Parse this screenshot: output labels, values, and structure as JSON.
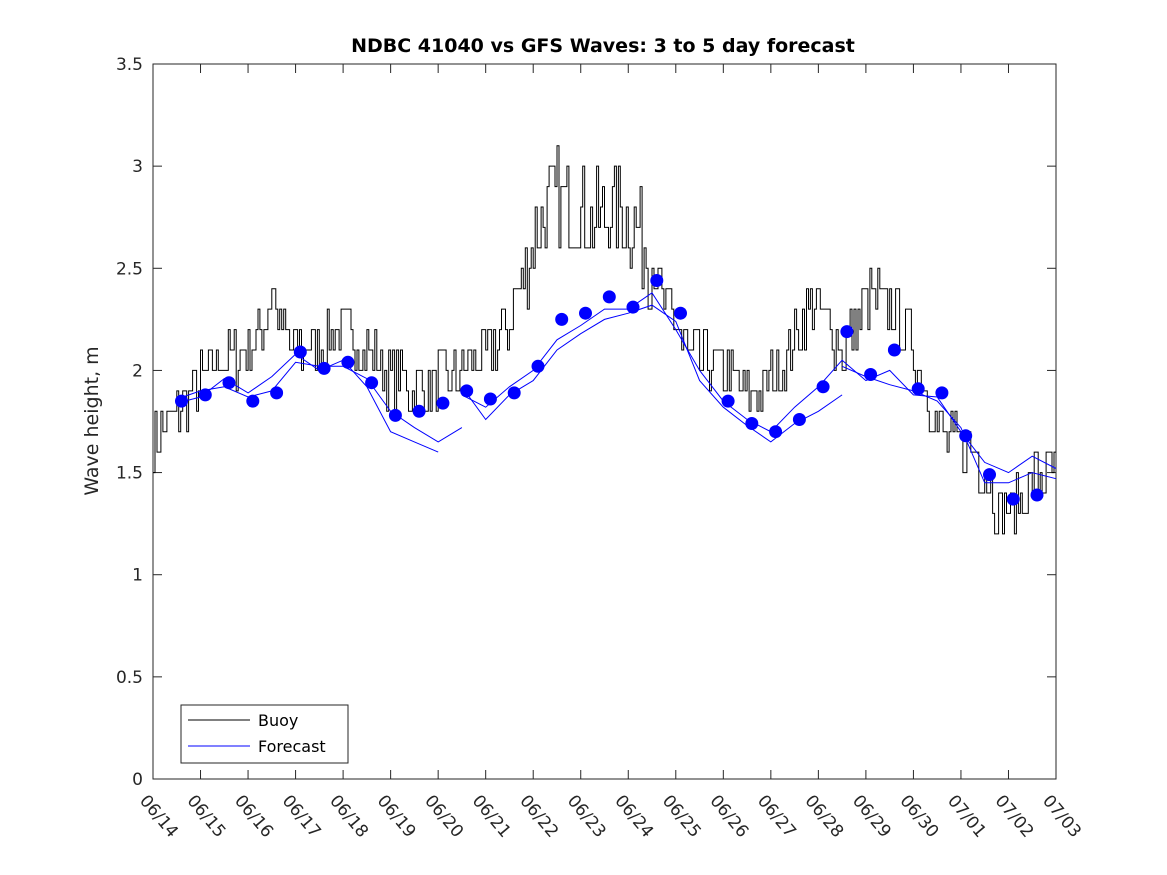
{
  "chart_data": {
    "type": "line",
    "title": "NDBC 41040 vs GFS Waves: 3 to 5 day forecast",
    "ylabel": "Wave height, m",
    "xlabel": "",
    "ylim": [
      0,
      3.5
    ],
    "xlim": [
      0,
      19
    ],
    "yticks": [
      "0",
      "0.5",
      "1",
      "1.5",
      "2",
      "2.5",
      "3",
      "3.5"
    ],
    "xtick_labels": [
      "06/14",
      "06/15",
      "06/16",
      "06/17",
      "06/18",
      "06/19",
      "06/20",
      "06/21",
      "06/22",
      "06/23",
      "06/24",
      "06/25",
      "06/26",
      "06/27",
      "06/28",
      "06/29",
      "06/30",
      "07/01",
      "07/02",
      "07/03"
    ],
    "grid": false,
    "legend": {
      "position": "bottom-left",
      "entries": [
        "Buoy",
        "Forecast"
      ]
    },
    "colors": {
      "buoy": "#000000",
      "forecast": "#0000ff"
    },
    "series": [
      {
        "name": "Buoy",
        "points": [
          [
            0,
            1.65
          ],
          [
            0.25,
            1.75
          ],
          [
            0.5,
            1.8
          ],
          [
            0.75,
            1.85
          ],
          [
            1,
            1.95
          ],
          [
            1.25,
            2.05
          ],
          [
            1.5,
            2.05
          ],
          [
            1.75,
            2.05
          ],
          [
            2,
            2.1
          ],
          [
            2.25,
            2.15
          ],
          [
            2.4,
            2.3
          ],
          [
            2.5,
            2.4
          ],
          [
            2.75,
            2.15
          ],
          [
            3,
            2.1
          ],
          [
            3.25,
            2.1
          ],
          [
            3.5,
            2.1
          ],
          [
            3.75,
            2.15
          ],
          [
            4,
            2.2
          ],
          [
            4.25,
            2.15
          ],
          [
            4.5,
            2.1
          ],
          [
            4.75,
            2.05
          ],
          [
            5,
            1.95
          ],
          [
            5.25,
            1.95
          ],
          [
            5.5,
            1.9
          ],
          [
            5.75,
            1.9
          ],
          [
            6,
            1.95
          ],
          [
            6.25,
            1.95
          ],
          [
            6.5,
            2.0
          ],
          [
            6.75,
            2.05
          ],
          [
            7,
            2.1
          ],
          [
            7.25,
            2.15
          ],
          [
            7.5,
            2.25
          ],
          [
            7.75,
            2.45
          ],
          [
            8,
            2.65
          ],
          [
            8.25,
            2.8
          ],
          [
            8.5,
            2.85
          ],
          [
            8.75,
            2.8
          ],
          [
            9,
            2.8
          ],
          [
            9.25,
            2.75
          ],
          [
            9.5,
            2.75
          ],
          [
            9.75,
            2.8
          ],
          [
            10,
            2.75
          ],
          [
            10.25,
            2.65
          ],
          [
            10.5,
            2.5
          ],
          [
            10.75,
            2.35
          ],
          [
            11,
            2.2
          ],
          [
            11.25,
            2.1
          ],
          [
            11.5,
            2.05
          ],
          [
            11.75,
            2.05
          ],
          [
            12,
            2.0
          ],
          [
            12.25,
            1.95
          ],
          [
            12.5,
            1.85
          ],
          [
            12.75,
            1.9
          ],
          [
            13,
            1.95
          ],
          [
            13.25,
            2.05
          ],
          [
            13.5,
            2.15
          ],
          [
            13.75,
            2.3
          ],
          [
            14,
            2.3
          ],
          [
            14.25,
            2.2
          ],
          [
            14.5,
            2.1
          ],
          [
            14.75,
            2.2
          ],
          [
            15,
            2.35
          ],
          [
            15.25,
            2.35
          ],
          [
            15.5,
            2.3
          ],
          [
            15.75,
            2.2
          ],
          [
            16,
            2.1
          ],
          [
            16.25,
            1.9
          ],
          [
            16.5,
            1.75
          ],
          [
            16.75,
            1.65
          ],
          [
            17,
            1.65
          ],
          [
            17.25,
            1.6
          ],
          [
            17.5,
            1.5
          ],
          [
            17.75,
            1.35
          ],
          [
            18,
            1.3
          ],
          [
            18.25,
            1.35
          ],
          [
            18.5,
            1.45
          ],
          [
            18.75,
            1.5
          ],
          [
            19,
            1.55
          ]
        ],
        "range_note": ""
      },
      {
        "name": "Forecast",
        "type": "scatter",
        "points": [
          [
            0.6,
            1.85
          ],
          [
            1.1,
            1.88
          ],
          [
            1.6,
            1.94
          ],
          [
            2.1,
            1.85
          ],
          [
            2.6,
            1.89
          ],
          [
            3.1,
            2.09
          ],
          [
            3.6,
            2.01
          ],
          [
            4.1,
            2.04
          ],
          [
            4.6,
            1.94
          ],
          [
            5.1,
            1.78
          ],
          [
            5.6,
            1.8
          ],
          [
            6.1,
            1.84
          ],
          [
            6.6,
            1.9
          ],
          [
            7.1,
            1.86
          ],
          [
            7.6,
            1.89
          ],
          [
            8.1,
            2.02
          ],
          [
            8.6,
            2.25
          ],
          [
            9.1,
            2.28
          ],
          [
            9.6,
            2.36
          ],
          [
            10.1,
            2.31
          ],
          [
            10.6,
            2.44
          ],
          [
            11.1,
            2.28
          ],
          [
            12.1,
            1.85
          ],
          [
            12.6,
            1.74
          ],
          [
            13.1,
            1.7
          ],
          [
            13.6,
            1.76
          ],
          [
            14.1,
            1.92
          ],
          [
            14.6,
            2.19
          ],
          [
            15.1,
            1.98
          ],
          [
            15.6,
            2.1
          ],
          [
            16.1,
            1.91
          ],
          [
            16.6,
            1.89
          ],
          [
            17.1,
            1.68
          ],
          [
            17.6,
            1.49
          ],
          [
            18.1,
            1.37
          ],
          [
            18.6,
            1.39
          ]
        ]
      },
      {
        "name": "",
        "type": "line",
        "points": [
          [
            0.5,
            1.86
          ],
          [
            1,
            1.9
          ],
          [
            1.5,
            1.92
          ],
          [
            2,
            1.87
          ],
          [
            2.5,
            1.9
          ],
          [
            3,
            2.04
          ],
          [
            3.5,
            2.02
          ],
          [
            4,
            2.02
          ],
          [
            4.5,
            1.96
          ],
          [
            5,
            1.8
          ],
          [
            5.5,
            1.72
          ],
          [
            6,
            1.65
          ],
          [
            6.5,
            1.72
          ]
        ]
      },
      {
        "name": "",
        "type": "line",
        "points": [
          [
            0.5,
            1.84
          ],
          [
            1,
            1.87
          ],
          [
            1.5,
            1.96
          ],
          [
            2,
            1.89
          ],
          [
            2.5,
            1.97
          ],
          [
            3,
            2.08
          ],
          [
            3.5,
            2.0
          ],
          [
            4,
            2.05
          ],
          [
            4.5,
            1.92
          ],
          [
            5,
            1.7
          ],
          [
            5.5,
            1.65
          ],
          [
            6,
            1.6
          ]
        ]
      },
      {
        "name": "",
        "type": "line",
        "points": [
          [
            6.5,
            1.88
          ],
          [
            7,
            1.82
          ],
          [
            7.5,
            1.92
          ],
          [
            8,
            2.0
          ],
          [
            8.5,
            2.15
          ],
          [
            9,
            2.22
          ],
          [
            9.5,
            2.3
          ],
          [
            10,
            2.3
          ],
          [
            10.5,
            2.38
          ],
          [
            11,
            2.2
          ],
          [
            11.5,
            2.0
          ]
        ]
      },
      {
        "name": "",
        "type": "line",
        "points": [
          [
            6.5,
            1.92
          ],
          [
            7,
            1.76
          ],
          [
            7.5,
            1.88
          ],
          [
            8,
            1.95
          ],
          [
            8.5,
            2.1
          ],
          [
            9,
            2.18
          ],
          [
            9.5,
            2.25
          ],
          [
            10,
            2.28
          ],
          [
            10.5,
            2.32
          ],
          [
            11,
            2.24
          ],
          [
            11.5,
            1.95
          ],
          [
            12,
            1.82
          ],
          [
            12.5,
            1.73
          ],
          [
            13,
            1.65
          ],
          [
            13.5,
            1.74
          ],
          [
            14,
            1.8
          ],
          [
            14.5,
            1.88
          ]
        ]
      },
      {
        "name": "",
        "type": "line",
        "points": [
          [
            11.5,
            2.0
          ],
          [
            12,
            1.85
          ],
          [
            12.5,
            1.76
          ],
          [
            13,
            1.7
          ],
          [
            13.5,
            1.82
          ],
          [
            14,
            1.92
          ],
          [
            14.5,
            2.05
          ],
          [
            15,
            1.95
          ],
          [
            15.5,
            2.0
          ],
          [
            16,
            1.88
          ],
          [
            16.5,
            1.87
          ],
          [
            17,
            1.7
          ],
          [
            17.5,
            1.55
          ],
          [
            18,
            1.5
          ],
          [
            18.5,
            1.58
          ],
          [
            19,
            1.52
          ]
        ]
      },
      {
        "name": "",
        "type": "line",
        "points": [
          [
            14.5,
            2.02
          ],
          [
            15,
            1.97
          ],
          [
            15.5,
            1.93
          ],
          [
            16,
            1.9
          ],
          [
            16.5,
            1.85
          ],
          [
            17,
            1.72
          ],
          [
            17.5,
            1.45
          ],
          [
            18,
            1.45
          ],
          [
            18.5,
            1.5
          ],
          [
            19,
            1.47
          ]
        ]
      }
    ]
  }
}
